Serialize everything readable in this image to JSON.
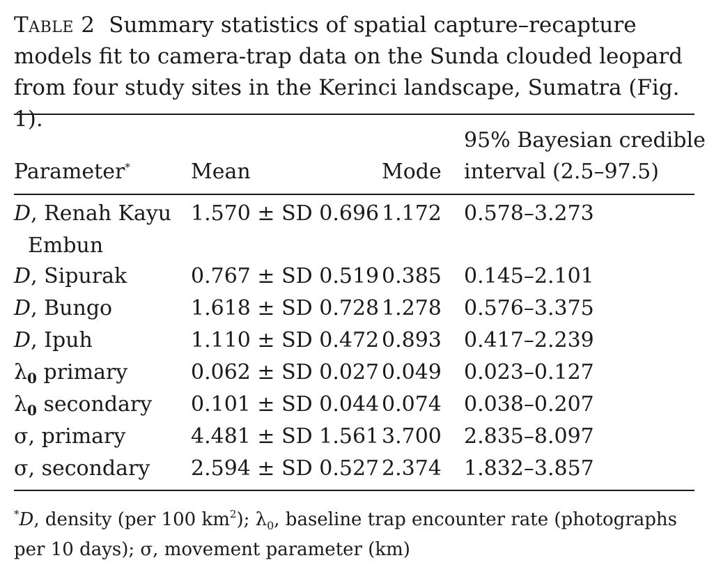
{
  "caption": {
    "label": "Table 2",
    "text": "Summary statistics of spatial capture–recapture models fit to camera-trap data on the Sunda clouded leopard from four study sites in the Kerinci landscape, Sumatra (Fig. 1)."
  },
  "headers": {
    "parameter": "Parameter",
    "parameter_mark": "*",
    "mean": "Mean",
    "mode": "Mode",
    "interval_line1": "95% Bayesian credible",
    "interval_line2": "interval (2.5–97.5)"
  },
  "rows": [
    {
      "sym": "D",
      "sub": "",
      "sep": ",",
      "label": "Renah Kayu",
      "label2": "Embun",
      "mean": "1.570 ± SD 0.696",
      "mode": "1.172",
      "interval": "0.578–3.273"
    },
    {
      "sym": "D",
      "sub": "",
      "sep": ",",
      "label": "Sipurak",
      "label2": "",
      "mean": "0.767 ± SD 0.519",
      "mode": "0.385",
      "interval": "0.145–2.101"
    },
    {
      "sym": "D",
      "sub": "",
      "sep": ",",
      "label": "Bungo",
      "label2": "",
      "mean": "1.618 ± SD 0.728",
      "mode": "1.278",
      "interval": "0.576–3.375"
    },
    {
      "sym": "D",
      "sub": "",
      "sep": ",",
      "label": "Ipuh",
      "label2": "",
      "mean": "1.110 ± SD 0.472",
      "mode": "0.893",
      "interval": "0.417–2.239"
    },
    {
      "sym": "λ",
      "sub": "0",
      "sep": "",
      "label": "primary",
      "label2": "",
      "mean": "0.062 ± SD 0.027",
      "mode": "0.049",
      "interval": "0.023–0.127"
    },
    {
      "sym": "λ",
      "sub": "0",
      "sep": "",
      "label": "secondary",
      "label2": "",
      "mean": "0.101 ± SD 0.044",
      "mode": "0.074",
      "interval": "0.038–0.207"
    },
    {
      "sym": "σ",
      "sub": "",
      "sep": ",",
      "label": "primary",
      "label2": "",
      "mean": "4.481 ± SD 1.561",
      "mode": "3.700",
      "interval": "2.835–8.097"
    },
    {
      "sym": "σ",
      "sub": "",
      "sep": ",",
      "label": "secondary",
      "label2": "",
      "mean": "2.594 ± SD 0.527",
      "mode": "2.374",
      "interval": "1.832–3.857"
    }
  ],
  "footnote": {
    "mark": "*",
    "d_sym": "D",
    "d_text": ", density (per 100 km",
    "d_sup": "2",
    "d_close": "); ",
    "lambda_sym": "λ",
    "lambda_sub": "0",
    "lambda_text": ", baseline trap encounter rate (photographs per 10 days); σ, movement parameter (km)"
  }
}
